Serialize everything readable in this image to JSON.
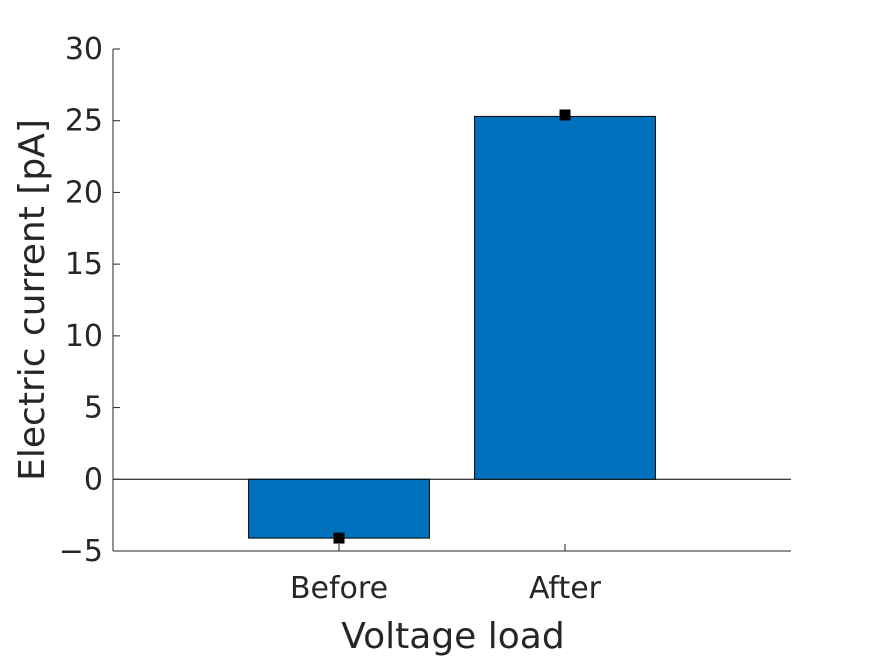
{
  "chart_data": {
    "type": "bar",
    "categories": [
      "Before",
      "After"
    ],
    "values": [
      -4.1,
      25.3
    ],
    "markers": [
      -4.1,
      25.4
    ],
    "title": "",
    "xlabel": "Voltage load",
    "ylabel": "Electric current [pA]",
    "ylim": [
      -5,
      30
    ],
    "yticks": [
      "−5",
      "0",
      "5",
      "10",
      "15",
      "20",
      "25",
      "30"
    ],
    "ytick_values": [
      -5,
      0,
      5,
      10,
      15,
      20,
      25,
      30
    ],
    "grid": false,
    "bar_color": "#0072BD",
    "marker_color": "#000000"
  }
}
